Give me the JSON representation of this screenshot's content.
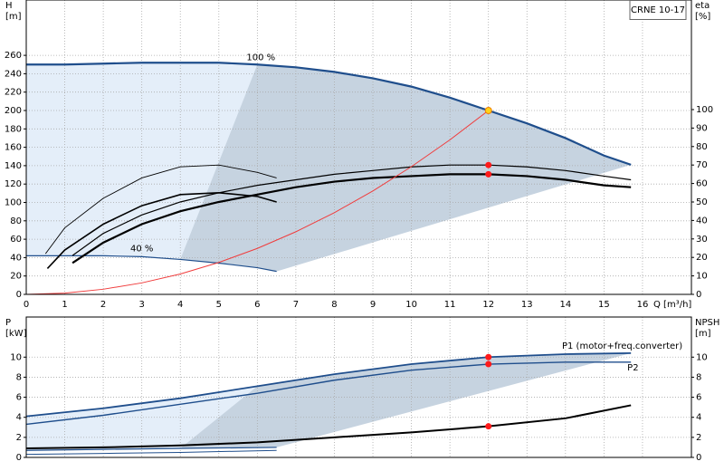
{
  "model_label": "CRNE 10-17",
  "chart_data": [
    {
      "type": "line",
      "xlabel": "Q [m³/h]",
      "ylabel": [
        "H",
        "[m]"
      ],
      "y2label": [
        "eta",
        "[%]"
      ],
      "xlim": [
        0,
        17.27
      ],
      "xticks": [
        0,
        1,
        2,
        3,
        4,
        5,
        6,
        7,
        8,
        9,
        10,
        11,
        12,
        13,
        14,
        15,
        16
      ],
      "xtick_labels": true,
      "ylim": [
        0,
        320.2
      ],
      "yticks": [
        0,
        20,
        40,
        60,
        80,
        100,
        120,
        140,
        160,
        180,
        200,
        220,
        240,
        260
      ],
      "y2lim": [
        0,
        159.3
      ],
      "y2ticks": [
        0,
        10,
        20,
        30,
        40,
        50,
        60,
        70,
        80,
        90,
        100
      ],
      "grid": true,
      "duty_q": 12,
      "fill_between": [
        0,
        1
      ],
      "fill_colors": [
        "#e4eef9",
        "#c6d3e0"
      ],
      "series": [
        {
          "name": "100 %",
          "color": "#1f4e8c",
          "width": 2.2,
          "duty_marker": "#ffd21a",
          "x": [
            0,
            1,
            2,
            3,
            4,
            5,
            6,
            7,
            8,
            9,
            10,
            11,
            12,
            13,
            14,
            15,
            15.7
          ],
          "values": [
            250,
            250,
            251,
            252,
            252,
            252,
            250,
            247,
            242,
            235,
            226,
            214,
            200,
            186,
            170,
            151,
            141
          ]
        },
        {
          "name": "40 %",
          "color": "#1f4e8c",
          "width": 1.2,
          "x": [
            0,
            1,
            2,
            3,
            4,
            5,
            6,
            6.5
          ],
          "values": [
            42,
            42,
            42,
            41,
            38,
            34,
            29,
            25
          ]
        },
        {
          "axis": "y2",
          "color": "#000000",
          "width": 1.2,
          "duty_marker": "#ff1a1a",
          "x": [
            1.2,
            2,
            3,
            4,
            5,
            6,
            7,
            8,
            9,
            10,
            11,
            12,
            13,
            14,
            15,
            15.7
          ],
          "values": [
            21,
            33,
            43,
            50,
            55,
            59,
            62,
            65,
            67,
            69,
            70,
            70,
            69,
            67,
            64,
            62
          ]
        },
        {
          "axis": "y2",
          "color": "#000000",
          "width": 2.2,
          "duty_marker": "#ff1a1a",
          "x": [
            1.2,
            2,
            3,
            4,
            5,
            6,
            7,
            8,
            9,
            10,
            11,
            12,
            13,
            14,
            15,
            15.7
          ],
          "values": [
            17,
            28,
            38,
            45,
            50,
            54,
            58,
            61,
            63,
            64,
            65,
            65,
            64,
            62,
            59,
            58
          ]
        },
        {
          "axis": "y2",
          "color": "#000000",
          "width": 0.9,
          "x": [
            0.5,
            1,
            2,
            3,
            4,
            5,
            6,
            6.5
          ],
          "values": [
            22,
            36,
            52,
            63,
            69,
            70,
            66,
            63
          ]
        },
        {
          "axis": "y2",
          "color": "#000000",
          "width": 1.6,
          "x": [
            0.55,
            1,
            2,
            3,
            4,
            5,
            6,
            6.5
          ],
          "values": [
            14,
            24,
            38,
            48,
            54,
            55,
            53,
            50
          ]
        },
        {
          "color": "#f03c3c",
          "width": 1,
          "x": [
            0,
            1,
            2,
            3,
            4,
            5,
            6,
            7,
            8,
            9,
            10,
            11,
            12
          ],
          "values": [
            0,
            1.4,
            5.6,
            12.5,
            22.2,
            34.7,
            50,
            68.1,
            88.9,
            112.5,
            138.9,
            168.1,
            200
          ]
        }
      ]
    },
    {
      "type": "line",
      "ylabel": [
        "P",
        "[kW]"
      ],
      "y2label": [
        "NPSH",
        "[m]"
      ],
      "xlim": [
        0,
        17.27
      ],
      "xticks": [
        0,
        1,
        2,
        3,
        4,
        5,
        6,
        7,
        8,
        9,
        10,
        11,
        12,
        13,
        14,
        15,
        16
      ],
      "xtick_labels": false,
      "ylim": [
        0,
        14
      ],
      "yticks": [
        0,
        2,
        4,
        6,
        8,
        10
      ],
      "y2lim": [
        0,
        14
      ],
      "y2ticks": [
        0,
        2,
        4,
        6,
        8,
        10
      ],
      "grid": true,
      "duty_q": 12,
      "fill_between": [
        0,
        2
      ],
      "fill_colors": [
        "#e4eef9",
        "#c6d3e0"
      ],
      "series": [
        {
          "name": "P1 (motor+freq.converter)",
          "color": "#1f4e8c",
          "width": 1.8,
          "duty_marker": "#ff1a1a",
          "x": [
            0,
            2,
            4,
            6,
            8,
            10,
            12,
            14,
            15.7
          ],
          "values": [
            4.1,
            4.9,
            5.9,
            7.1,
            8.3,
            9.3,
            10,
            10.3,
            10.4
          ]
        },
        {
          "name": "P2",
          "color": "#1f4e8c",
          "width": 1.4,
          "duty_marker": "#ff1a1a",
          "x": [
            0,
            2,
            4,
            6,
            8,
            10,
            12,
            14,
            15.7
          ],
          "values": [
            3.3,
            4.2,
            5.3,
            6.4,
            7.7,
            8.7,
            9.3,
            9.5,
            9.5
          ]
        },
        {
          "color": "#1f4e8c",
          "width": 1.2,
          "x": [
            0,
            2,
            4,
            6.5
          ],
          "values": [
            0.7,
            0.8,
            0.9,
            1.0
          ]
        },
        {
          "color": "#1f4e8c",
          "width": 1,
          "x": [
            0,
            2,
            4,
            6.5
          ],
          "values": [
            0.3,
            0.4,
            0.5,
            0.7
          ]
        },
        {
          "axis": "y2",
          "color": "#000000",
          "width": 2,
          "duty_marker": "#ff1a1a",
          "x": [
            0,
            2,
            4,
            6,
            8,
            10,
            12,
            14,
            15.7
          ],
          "values": [
            0.9,
            1.0,
            1.2,
            1.5,
            2.0,
            2.5,
            3.1,
            3.9,
            5.2
          ]
        }
      ]
    }
  ]
}
